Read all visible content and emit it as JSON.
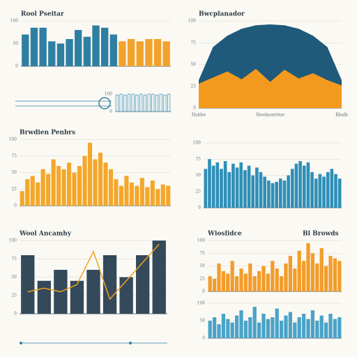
{
  "chart_data": [
    {
      "type": "bar",
      "title": "Rool Pseitar",
      "ylim": [
        0,
        100
      ],
      "yticks": [
        0,
        50,
        100
      ],
      "grid": true,
      "series": [
        {
          "color": "#2f7fa3",
          "values": [
            70,
            85,
            85,
            55,
            50,
            60,
            80,
            65,
            90,
            85,
            70,
            null,
            null,
            null,
            null,
            null,
            null
          ]
        },
        {
          "color": "#f2a32c",
          "values": [
            null,
            null,
            null,
            null,
            null,
            null,
            null,
            null,
            null,
            null,
            null,
            55,
            60,
            55,
            60,
            60,
            55
          ]
        }
      ]
    },
    {
      "type": "area",
      "title": "Bwcplanador",
      "ylim": [
        0,
        100
      ],
      "yticks": [
        0,
        25,
        50,
        75,
        100
      ],
      "grid": true,
      "categories": [
        "Hubbe",
        null,
        null,
        null,
        null,
        "Sbodnontttue",
        null,
        null,
        null,
        null,
        "Rbalb"
      ],
      "series": [
        {
          "color": "#1f5a7a",
          "values": [
            32,
            70,
            83,
            91,
            95,
            96,
            95,
            91,
            83,
            70,
            32
          ]
        },
        {
          "color": "#f39a1e",
          "values": [
            28,
            35,
            42,
            33,
            45,
            30,
            44,
            34,
            40,
            32,
            26
          ]
        }
      ]
    },
    {
      "type": "bar",
      "outline": true,
      "ylim": [
        0,
        100
      ],
      "yticks": [
        0,
        100
      ],
      "grid": false,
      "series": [
        {
          "color": "#3f94b8",
          "values": [
            95,
            100,
            95,
            100,
            100,
            95,
            100,
            95,
            100,
            100,
            95,
            100,
            95,
            100
          ]
        }
      ]
    },
    {
      "type": "bar",
      "title": "Brwdien Penbrs",
      "ylim": [
        0,
        100
      ],
      "yticks": [
        0,
        25,
        50,
        75,
        100
      ],
      "grid": true,
      "series": [
        {
          "color": "#f4a72a",
          "values": [
            22,
            40,
            45,
            35,
            55,
            48,
            70,
            60,
            55,
            65,
            50,
            60,
            75,
            95,
            70,
            80,
            65,
            55,
            40,
            30,
            45,
            35,
            30,
            42,
            28,
            38,
            25,
            32,
            30
          ]
        }
      ]
    },
    {
      "type": "bar",
      "ylim": [
        0,
        100
      ],
      "yticks": [
        0,
        25,
        50,
        75,
        100
      ],
      "grid": true,
      "series": [
        {
          "color": "#2e8fb8",
          "values": [
            60,
            75,
            65,
            70,
            60,
            72,
            55,
            68,
            62,
            70,
            58,
            65,
            50,
            62,
            55,
            48,
            42,
            38,
            40,
            45,
            42,
            50,
            60,
            68,
            72,
            65,
            70,
            55,
            45,
            52,
            48,
            55,
            60,
            52,
            45
          ]
        }
      ]
    },
    {
      "type": "bar",
      "title": "Wool Ancamhy",
      "ylim": [
        0,
        100
      ],
      "yticks": [
        0,
        25,
        50,
        75,
        100
      ],
      "grid": true,
      "series": [
        {
          "color": "#34495a",
          "values": [
            80,
            45,
            60,
            45,
            60,
            80,
            50,
            80,
            100
          ]
        },
        {
          "type": "line",
          "color": "#f0a41c",
          "values": [
            30,
            35,
            30,
            40,
            85,
            20,
            45,
            70,
            95
          ]
        }
      ]
    },
    {
      "type": "bar",
      "title": "Wioslidce",
      "subtitle": "Bl Browds",
      "ylim": [
        0,
        100
      ],
      "yticks": [
        0,
        25,
        50,
        75,
        100
      ],
      "grid": true,
      "series": [
        {
          "color": "#f39c2a",
          "values": [
            30,
            25,
            55,
            40,
            35,
            60,
            30,
            45,
            35,
            55,
            30,
            40,
            50,
            35,
            60,
            45,
            30,
            55,
            70,
            45,
            80,
            60,
            95,
            75,
            55,
            85,
            50,
            70,
            65,
            60
          ]
        }
      ]
    },
    {
      "type": "bar",
      "ylim": [
        0,
        100
      ],
      "yticks": [
        0,
        50,
        100
      ],
      "grid": true,
      "series": [
        {
          "color": "#4aa3c8",
          "values": [
            50,
            60,
            40,
            70,
            55,
            45,
            65,
            80,
            50,
            60,
            90,
            45,
            70,
            55,
            60,
            85,
            50,
            65,
            75,
            45,
            60,
            70,
            55,
            80,
            50,
            65,
            45,
            70,
            55,
            60
          ]
        }
      ]
    }
  ]
}
